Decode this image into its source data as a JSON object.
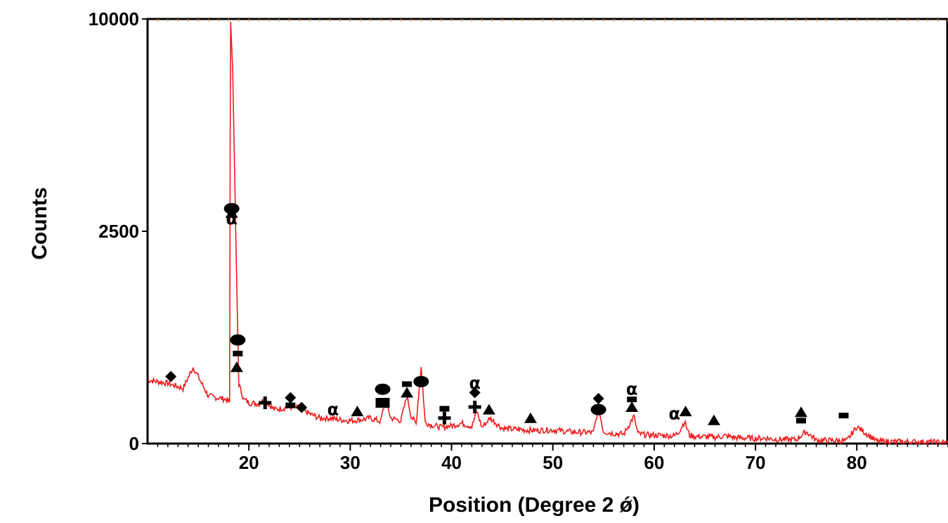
{
  "chart_data": {
    "type": "line",
    "xlabel": "Position (Degree 2 ǿ)",
    "ylabel": "Counts",
    "xlim": [
      10,
      89
    ],
    "y_ticks": [
      {
        "value": 0,
        "label": "0"
      },
      {
        "value": 2500,
        "label": "2500"
      },
      {
        "value": 10000,
        "label": "10000"
      }
    ],
    "x_ticks": [
      {
        "value": 20,
        "label": "20"
      },
      {
        "value": 30,
        "label": "30"
      },
      {
        "value": 40,
        "label": "40"
      },
      {
        "value": 50,
        "label": "50"
      },
      {
        "value": 60,
        "label": "60"
      },
      {
        "value": 70,
        "label": "70"
      },
      {
        "value": 80,
        "label": "80"
      }
    ],
    "y_scale": "piecewise",
    "grid": false,
    "series": [
      {
        "color": "#ee1c1c",
        "x": [
          10,
          12,
          13.5,
          14.5,
          16,
          17.8,
          18.1,
          18.2,
          18.4,
          18.7,
          19,
          19.5,
          20,
          21,
          21.5,
          22.5,
          24,
          25,
          26,
          27,
          28,
          29,
          30,
          31,
          32,
          33,
          33.5,
          34,
          35,
          35.6,
          36,
          36.5,
          37,
          37.4,
          38,
          39,
          40,
          41,
          42,
          42.5,
          43,
          43.8,
          45,
          46,
          48,
          50,
          52,
          54,
          54.5,
          55,
          56,
          57,
          58,
          58.4,
          59,
          60,
          61,
          62,
          62.5,
          63,
          63.5,
          64,
          65,
          66,
          67,
          68,
          70,
          71,
          72,
          74,
          75,
          76,
          78,
          79,
          80,
          82,
          84,
          86,
          88,
          89
        ],
        "y": [
          750,
          710,
          650,
          900,
          560,
          520,
          480,
          9900,
          8200,
          2500,
          700,
          520,
          480,
          470,
          520,
          400,
          430,
          420,
          350,
          300,
          300,
          280,
          270,
          280,
          300,
          260,
          520,
          300,
          270,
          560,
          330,
          230,
          920,
          250,
          220,
          190,
          210,
          240,
          200,
          380,
          190,
          300,
          180,
          170,
          155,
          160,
          135,
          130,
          420,
          140,
          120,
          110,
          320,
          115,
          105,
          100,
          95,
          90,
          150,
          260,
          95,
          85,
          80,
          75,
          90,
          70,
          60,
          65,
          50,
          45,
          140,
          40,
          35,
          30,
          200,
          25,
          22,
          20,
          15,
          12
        ]
      }
    ],
    "annotations": [
      {
        "symbol": "diamond",
        "x": 12.3,
        "y": 790
      },
      {
        "symbol": "ellipse",
        "x": 18.3,
        "y": 3300
      },
      {
        "symbol": "triangle",
        "x": 18.3,
        "y": 3150
      },
      {
        "symbol": "alpha",
        "x": 18.3,
        "y": 2950
      },
      {
        "symbol": "ellipse",
        "x": 18.9,
        "y": 1220
      },
      {
        "symbol": "dash",
        "x": 18.9,
        "y": 1060
      },
      {
        "symbol": "triangle",
        "x": 18.8,
        "y": 900
      },
      {
        "symbol": "cross",
        "x": 21.6,
        "y": 480
      },
      {
        "symbol": "diamond",
        "x": 24.1,
        "y": 540
      },
      {
        "symbol": "dash",
        "x": 24.1,
        "y": 450
      },
      {
        "symbol": "diamond",
        "x": 25.2,
        "y": 425
      },
      {
        "symbol": "alpha",
        "x": 28.3,
        "y": 400
      },
      {
        "symbol": "triangle",
        "x": 30.7,
        "y": 380
      },
      {
        "symbol": "ellipse",
        "x": 33.2,
        "y": 640
      },
      {
        "symbol": "square",
        "x": 33.2,
        "y": 480
      },
      {
        "symbol": "dash",
        "x": 35.6,
        "y": 700
      },
      {
        "symbol": "triangle",
        "x": 35.6,
        "y": 600
      },
      {
        "symbol": "ellipse",
        "x": 37,
        "y": 730
      },
      {
        "symbol": "dash",
        "x": 39.3,
        "y": 410
      },
      {
        "symbol": "cross",
        "x": 39.3,
        "y": 300
      },
      {
        "symbol": "alpha",
        "x": 42.3,
        "y": 710
      },
      {
        "symbol": "diamond",
        "x": 42.3,
        "y": 600
      },
      {
        "symbol": "cross",
        "x": 42.3,
        "y": 430
      },
      {
        "symbol": "triangle",
        "x": 43.7,
        "y": 400
      },
      {
        "symbol": "triangle",
        "x": 47.8,
        "y": 300
      },
      {
        "symbol": "diamond",
        "x": 54.5,
        "y": 530
      },
      {
        "symbol": "ellipse",
        "x": 54.5,
        "y": 400
      },
      {
        "symbol": "alpha",
        "x": 57.8,
        "y": 640
      },
      {
        "symbol": "dash",
        "x": 57.8,
        "y": 520
      },
      {
        "symbol": "triangle",
        "x": 57.8,
        "y": 430
      },
      {
        "symbol": "alpha",
        "x": 62,
        "y": 350
      },
      {
        "symbol": "triangle",
        "x": 63.1,
        "y": 380
      },
      {
        "symbol": "triangle",
        "x": 65.9,
        "y": 275
      },
      {
        "symbol": "triangle",
        "x": 74.5,
        "y": 370
      },
      {
        "symbol": "dash",
        "x": 74.5,
        "y": 270
      },
      {
        "symbol": "dash",
        "x": 78.7,
        "y": 330
      }
    ]
  }
}
